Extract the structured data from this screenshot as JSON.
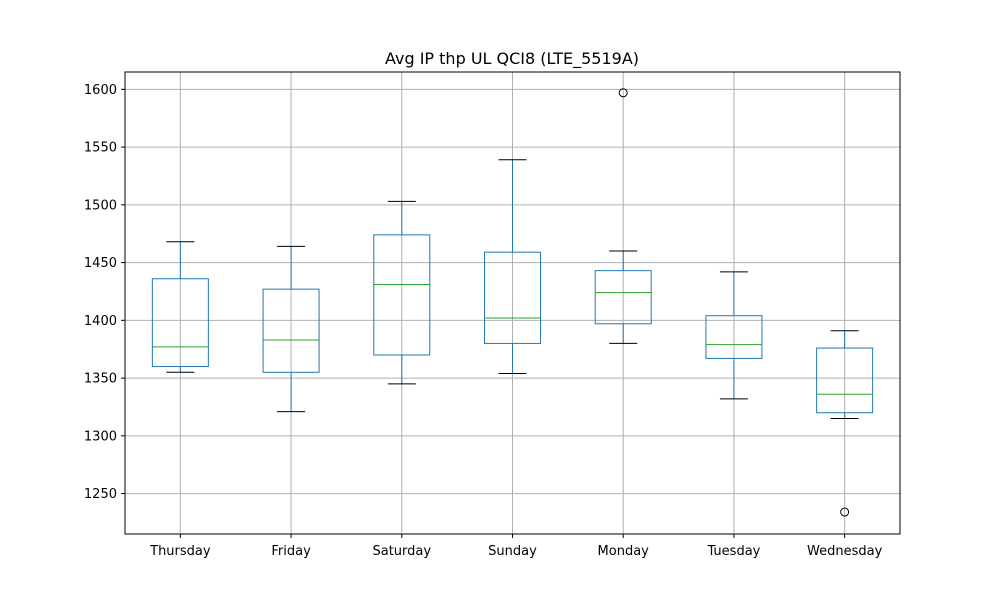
{
  "chart_data": {
    "type": "box",
    "title": "Avg IP thp UL QCI8 (LTE_5519A)",
    "xlabel": "",
    "ylabel": "",
    "categories": [
      "Thursday",
      "Friday",
      "Saturday",
      "Sunday",
      "Monday",
      "Tuesday",
      "Wednesday"
    ],
    "boxes": [
      {
        "category": "Thursday",
        "whisker_low": 1355,
        "q1": 1360,
        "median": 1377,
        "q3": 1436,
        "whisker_high": 1468,
        "outliers": []
      },
      {
        "category": "Friday",
        "whisker_low": 1321,
        "q1": 1355,
        "median": 1383,
        "q3": 1427,
        "whisker_high": 1464,
        "outliers": []
      },
      {
        "category": "Saturday",
        "whisker_low": 1345,
        "q1": 1370,
        "median": 1431,
        "q3": 1474,
        "whisker_high": 1503,
        "outliers": []
      },
      {
        "category": "Sunday",
        "whisker_low": 1354,
        "q1": 1380,
        "median": 1402,
        "q3": 1459,
        "whisker_high": 1539,
        "outliers": []
      },
      {
        "category": "Monday",
        "whisker_low": 1380,
        "q1": 1397,
        "median": 1424,
        "q3": 1443,
        "whisker_high": 1460,
        "outliers": [
          1597
        ]
      },
      {
        "category": "Tuesday",
        "whisker_low": 1332,
        "q1": 1367,
        "median": 1379,
        "q3": 1404,
        "whisker_high": 1442,
        "outliers": []
      },
      {
        "category": "Wednesday",
        "whisker_low": 1315,
        "q1": 1320,
        "median": 1336,
        "q3": 1376,
        "whisker_high": 1391,
        "outliers": [
          1234
        ]
      }
    ],
    "yticks": [
      1250,
      1300,
      1350,
      1400,
      1450,
      1500,
      1550,
      1600
    ],
    "ylim": [
      1215,
      1615
    ],
    "grid": true,
    "legend": "none",
    "colors": {
      "box": "#1f77b4",
      "median": "#2ca02c",
      "cap": "#000000",
      "grid": "#b0b0b0",
      "outlier": "#000000"
    }
  }
}
